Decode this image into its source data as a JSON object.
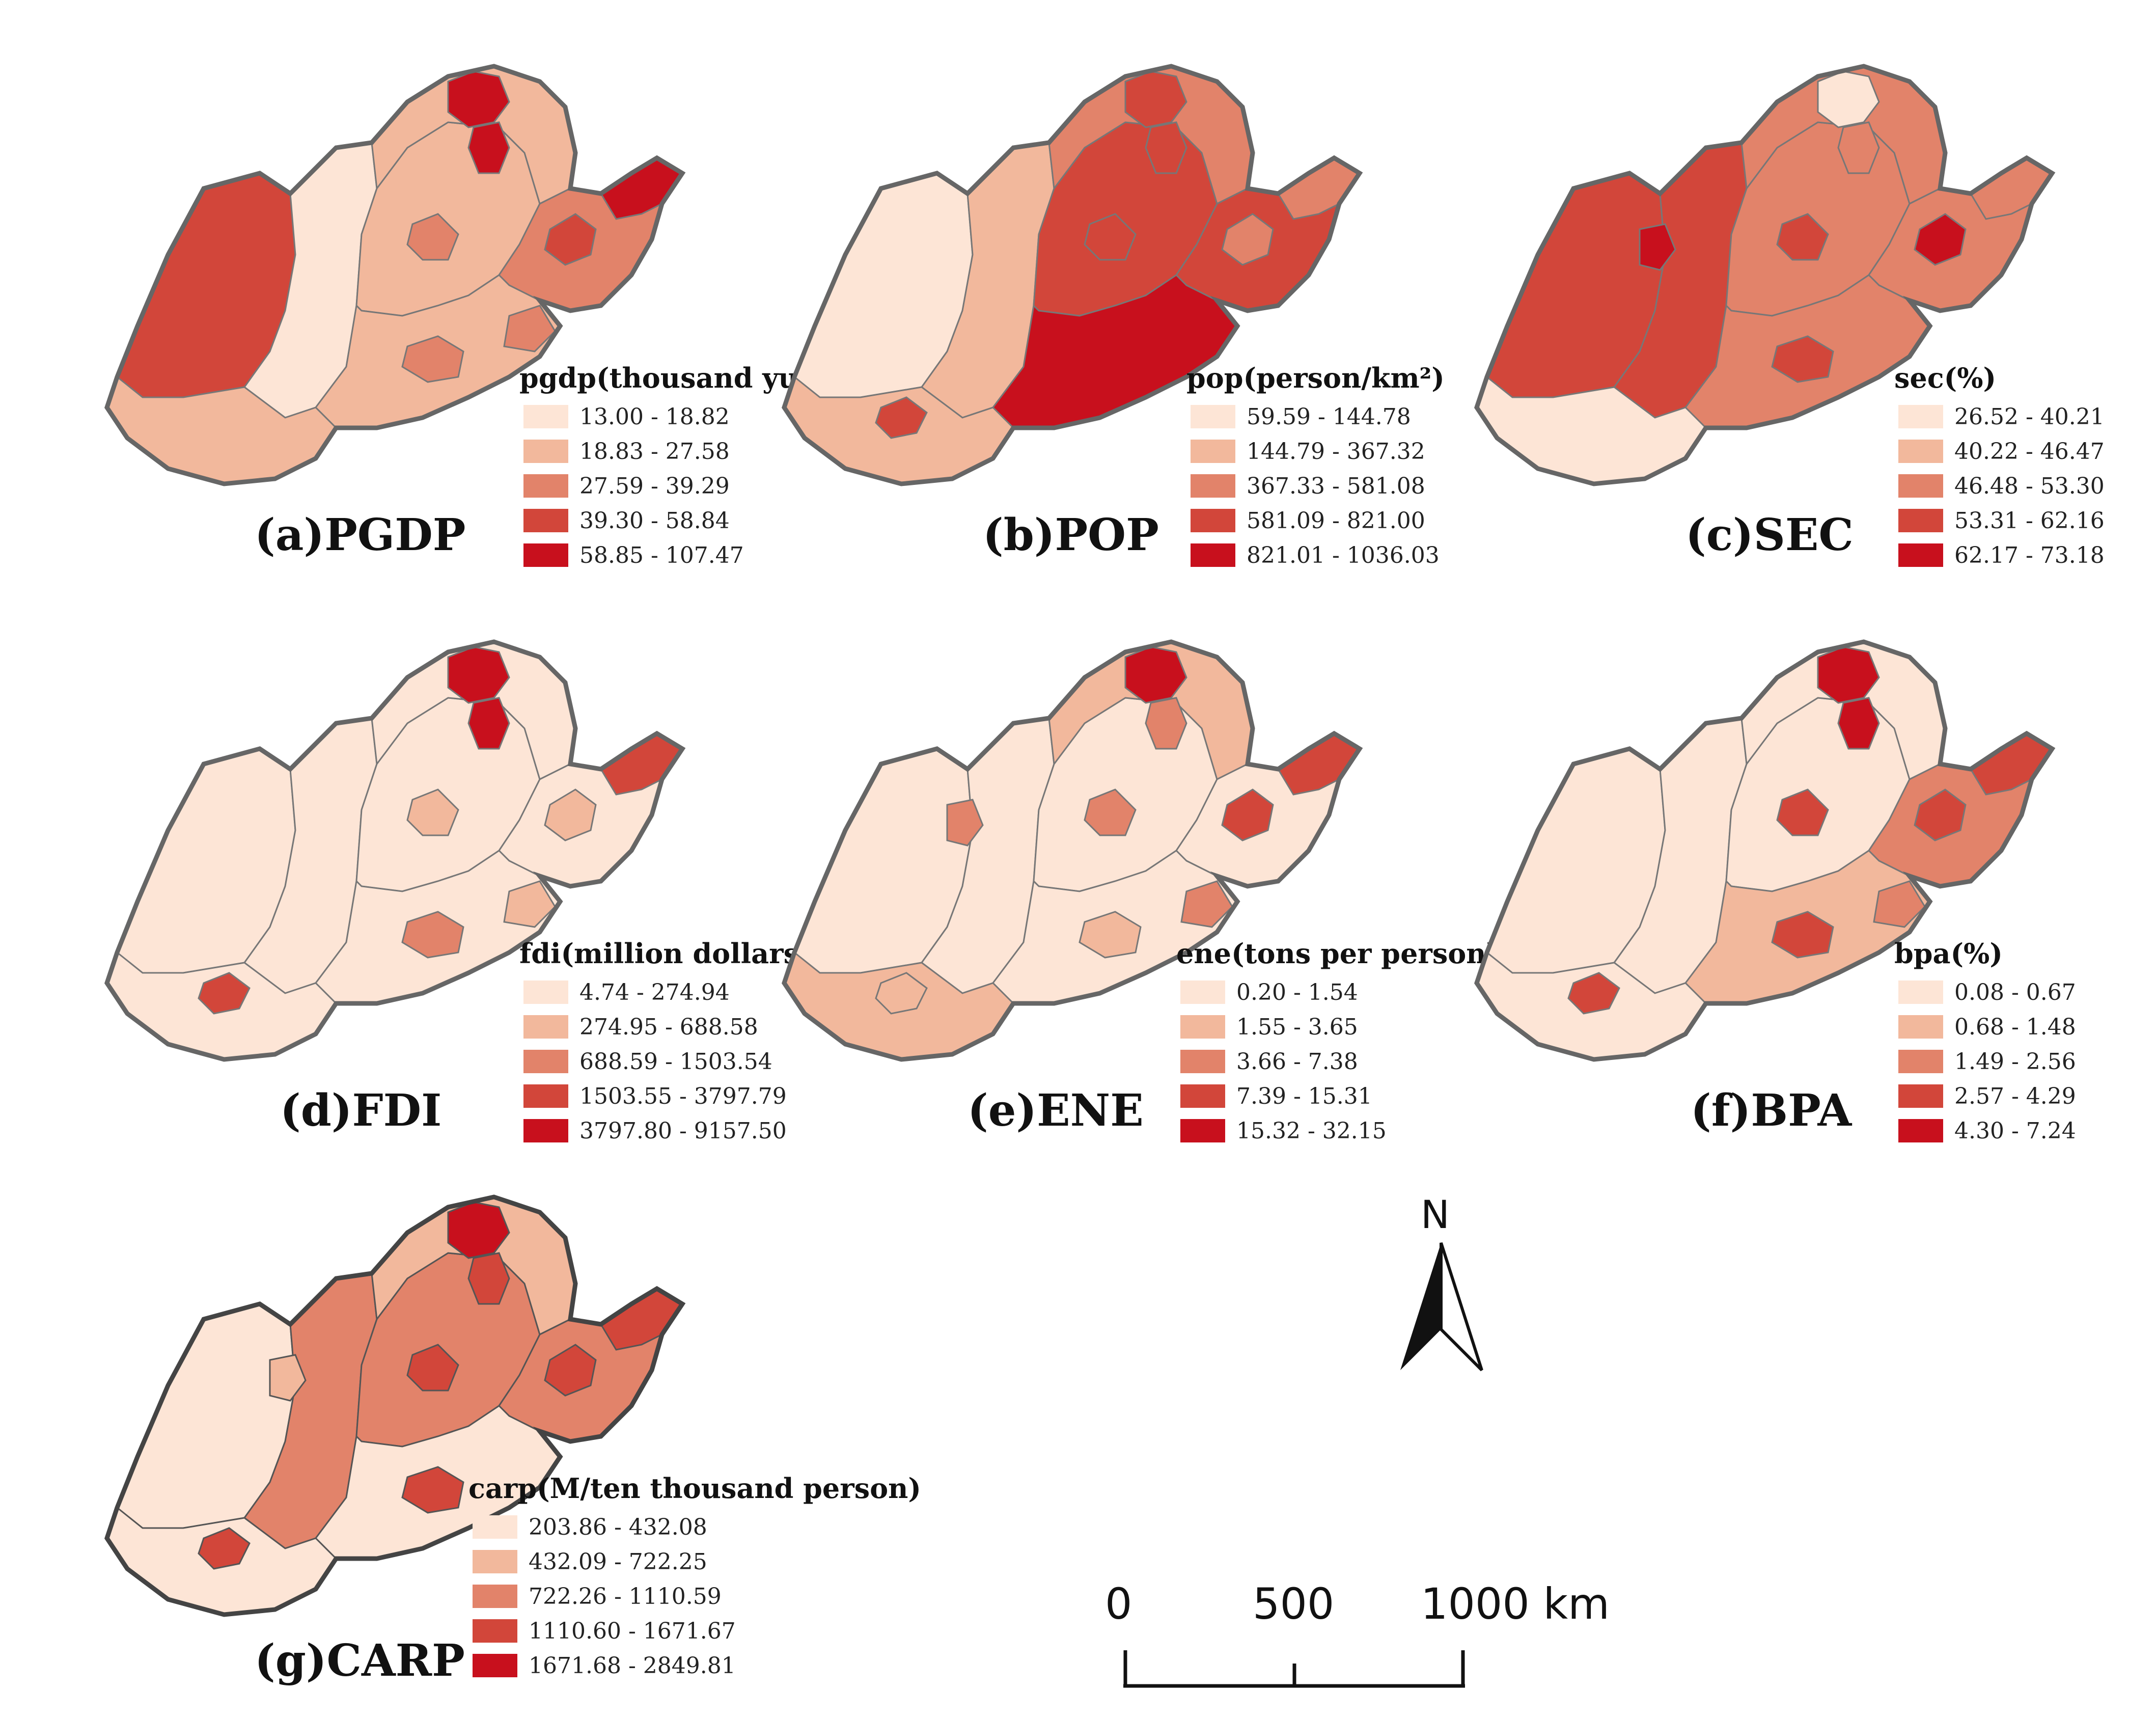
{
  "palette": [
    "#fde5d6",
    "#f2b89c",
    "#e2836a",
    "#d2463a",
    "#c8101d"
  ],
  "panels": [
    {
      "id": "a",
      "label": "(a)PGDP",
      "legend_title": "pgdp(thousand yuan)",
      "classes": [
        "13.00 - 18.82",
        "18.83 - 27.58",
        "27.59 - 39.29",
        "39.30 - 58.84",
        "58.85 - 107.47"
      ]
    },
    {
      "id": "b",
      "label": "(b)POP",
      "legend_title": "pop(person/km²)",
      "classes": [
        "59.59 - 144.78",
        "144.79 - 367.32",
        "367.33 - 581.08",
        "581.09 - 821.00",
        "821.01 - 1036.03"
      ]
    },
    {
      "id": "c",
      "label": "(c)SEC",
      "legend_title": "sec(%)",
      "classes": [
        "26.52 - 40.21",
        "40.22 - 46.47",
        "46.48 - 53.30",
        "53.31 - 62.16",
        "62.17 - 73.18"
      ]
    },
    {
      "id": "d",
      "label": "(d)FDI",
      "legend_title": "fdi(million dollars)",
      "classes": [
        "4.74 - 274.94",
        "274.95 - 688.58",
        "688.59 - 1503.54",
        "1503.55 - 3797.79",
        "3797.80 - 9157.50"
      ]
    },
    {
      "id": "e",
      "label": "(e)ENE",
      "legend_title": "ene(tons per person)",
      "classes": [
        "0.20 - 1.54",
        "1.55 - 3.65",
        "3.66 - 7.38",
        "7.39 - 15.31",
        "15.32 - 32.15"
      ]
    },
    {
      "id": "f",
      "label": "(f)BPA",
      "legend_title": "bpa(%)",
      "classes": [
        "0.08 - 0.67",
        "0.68 - 1.48",
        "1.49 - 2.56",
        "2.57 - 4.29",
        "4.30 - 7.24"
      ]
    },
    {
      "id": "g",
      "label": "(g)CARP",
      "legend_title": "carp(M/ten thousand person)",
      "classes": [
        "203.86 - 432.08",
        "432.09 - 722.25",
        "722.26 - 1110.59",
        "1110.60 - 1671.67",
        "1671.68 - 2849.81"
      ]
    }
  ],
  "north_arrow": {
    "letter": "N"
  },
  "scale_bar": {
    "labels": [
      "0",
      "500",
      "1000 km"
    ]
  },
  "icons": {
    "north": "north-arrow-icon"
  }
}
